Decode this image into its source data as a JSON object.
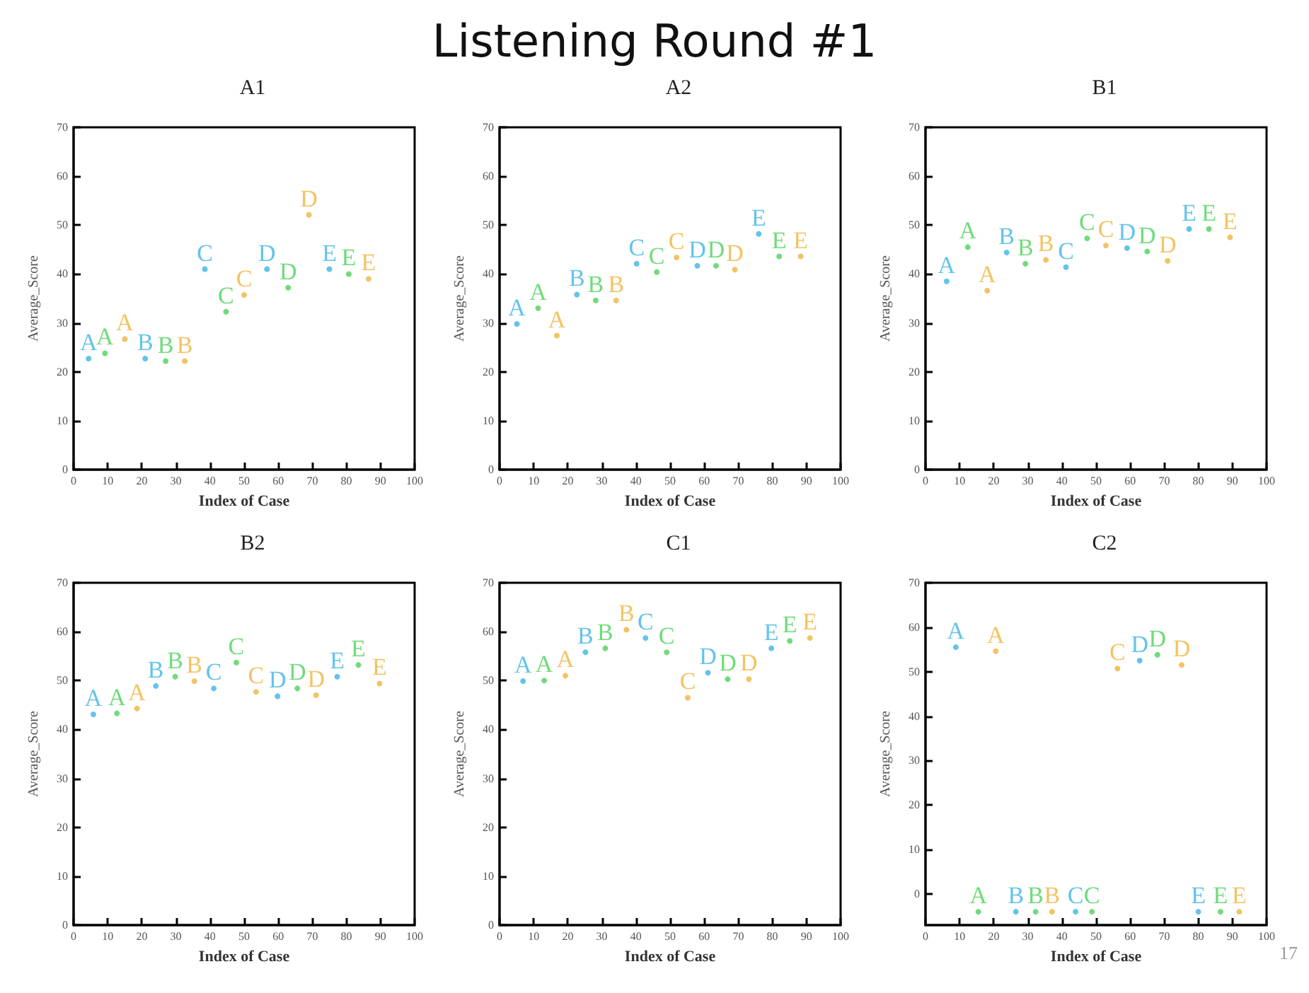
{
  "chart_data": [
    {
      "type": "other",
      "title": "Listening Round #1",
      "annotations": [
        "17"
      ]
    },
    {
      "type": "scatter",
      "title": "A1",
      "xlabel": "Index of Case",
      "ylabel": "Average_Score",
      "xlim": [
        0,
        100
      ],
      "xticks": [
        0,
        10,
        20,
        30,
        40,
        50,
        60,
        70,
        80,
        90,
        100
      ],
      "ylim": [
        0,
        70
      ],
      "yticks": [
        0,
        10,
        20,
        30,
        40,
        50,
        60,
        70
      ],
      "grid": false,
      "marker": "circle",
      "series": [
        {
          "color": "#3cb4e6",
          "x": [
            4.4,
            21,
            38.5,
            56.7,
            75
          ],
          "values": [
            22.7,
            22.7,
            41,
            41,
            41
          ],
          "value_labels": [
            "A",
            "B",
            "C",
            "D",
            "E"
          ]
        },
        {
          "color": "#4cd25a",
          "x": [
            9.2,
            27,
            44.7,
            62.9,
            80.7
          ],
          "values": [
            23.8,
            22.2,
            32.3,
            37.2,
            40
          ],
          "value_labels": [
            "A",
            "B",
            "C",
            "D",
            "E"
          ]
        },
        {
          "color": "#f0b43c",
          "x": [
            15,
            32.6,
            50,
            69,
            86.5
          ],
          "values": [
            26.7,
            22.2,
            35.7,
            52.1,
            39
          ],
          "value_labels": [
            "A",
            "B",
            "C",
            "D",
            "E"
          ]
        }
      ]
    },
    {
      "type": "scatter",
      "title": "A2",
      "xlabel": "Index of Case",
      "ylabel": "Average_Score",
      "xlim": [
        0,
        100
      ],
      "xticks": [
        0,
        10,
        20,
        30,
        40,
        50,
        60,
        70,
        80,
        90,
        100
      ],
      "ylim": [
        0,
        70
      ],
      "yticks": [
        0,
        10,
        20,
        30,
        40,
        50,
        60,
        70
      ],
      "grid": false,
      "marker": "circle",
      "series": [
        {
          "color": "#3cb4e6",
          "x": [
            5.1,
            22.7,
            40.2,
            58,
            76
          ],
          "values": [
            29.8,
            35.8,
            42.1,
            41.7,
            48.2
          ],
          "value_labels": [
            "A",
            "B",
            "C",
            "D",
            "E"
          ]
        },
        {
          "color": "#4cd25a",
          "x": [
            11.3,
            28.2,
            46.1,
            63.5,
            82
          ],
          "values": [
            33,
            34.6,
            40.4,
            41.7,
            43.6
          ],
          "value_labels": [
            "A",
            "B",
            "C",
            "D",
            "E"
          ]
        },
        {
          "color": "#f0b43c",
          "x": [
            16.8,
            34.2,
            51.9,
            69,
            88.3
          ],
          "values": [
            27.4,
            34.6,
            43.4,
            40.9,
            43.6
          ],
          "value_labels": [
            "A",
            "B",
            "C",
            "D",
            "E"
          ]
        }
      ]
    },
    {
      "type": "scatter",
      "title": "B1",
      "xlabel": "Index of Case",
      "ylabel": "Average_Score",
      "xlim": [
        0,
        100
      ],
      "xticks": [
        0,
        10,
        20,
        30,
        40,
        50,
        60,
        70,
        80,
        90,
        100
      ],
      "ylim": [
        0,
        70
      ],
      "yticks": [
        0,
        10,
        20,
        30,
        40,
        50,
        60,
        70
      ],
      "grid": false,
      "marker": "circle",
      "series": [
        {
          "color": "#3cb4e6",
          "x": [
            6.2,
            23.8,
            41.2,
            59.1,
            77.3
          ],
          "values": [
            38.5,
            44.4,
            41.4,
            45.3,
            49.2
          ],
          "value_labels": [
            "A",
            "B",
            "C",
            "D",
            "E"
          ]
        },
        {
          "color": "#4cd25a",
          "x": [
            12.4,
            29.3,
            47.4,
            65,
            83.1
          ],
          "values": [
            45.5,
            42.1,
            47.3,
            44.6,
            49.2
          ],
          "value_labels": [
            "A",
            "B",
            "C",
            "D",
            "E"
          ]
        },
        {
          "color": "#f0b43c",
          "x": [
            18.1,
            35.3,
            52.9,
            71,
            89.3
          ],
          "values": [
            36.6,
            42.9,
            45.8,
            42.7,
            47.5
          ],
          "value_labels": [
            "A",
            "B",
            "C",
            "D",
            "E"
          ]
        }
      ]
    },
    {
      "type": "scatter",
      "title": "B2",
      "xlabel": "Index of Case",
      "ylabel": "Average_Score",
      "xlim": [
        0,
        100
      ],
      "xticks": [
        0,
        10,
        20,
        30,
        40,
        50,
        60,
        70,
        80,
        90,
        100
      ],
      "ylim": [
        0,
        70
      ],
      "yticks": [
        0,
        10,
        20,
        30,
        40,
        50,
        60,
        70
      ],
      "grid": false,
      "marker": "circle",
      "series": [
        {
          "color": "#3cb4e6",
          "x": [
            5.8,
            24.1,
            41.1,
            59.8,
            77.3
          ],
          "values": [
            43.1,
            48.9,
            48.4,
            46.8,
            50.8
          ],
          "value_labels": [
            "A",
            "B",
            "C",
            "D",
            "E"
          ]
        },
        {
          "color": "#4cd25a",
          "x": [
            12.7,
            29.8,
            47.7,
            65.6,
            83.5
          ],
          "values": [
            43.3,
            50.8,
            53.7,
            48.4,
            53.2
          ],
          "value_labels": [
            "A",
            "B",
            "C",
            "D",
            "E"
          ]
        },
        {
          "color": "#f0b43c",
          "x": [
            18.6,
            35.4,
            53.5,
            71.1,
            89.7
          ],
          "values": [
            44.3,
            49.9,
            47.7,
            47,
            49.4
          ],
          "value_labels": [
            "A",
            "B",
            "C",
            "D",
            "E"
          ]
        }
      ]
    },
    {
      "type": "scatter",
      "title": "C1",
      "xlabel": "Index of Case",
      "ylabel": "Average_Score",
      "xlim": [
        0,
        100
      ],
      "xticks": [
        0,
        10,
        20,
        30,
        40,
        50,
        60,
        70,
        80,
        90,
        100
      ],
      "ylim": [
        0,
        70
      ],
      "yticks": [
        0,
        10,
        20,
        30,
        40,
        50,
        60,
        70
      ],
      "grid": false,
      "marker": "circle",
      "series": [
        {
          "color": "#3cb4e6",
          "x": [
            6.9,
            25.2,
            42.8,
            61.1,
            79.7
          ],
          "values": [
            49.9,
            55.8,
            58.7,
            51.6,
            56.6
          ],
          "value_labels": [
            "A",
            "B",
            "C",
            "D",
            "E"
          ]
        },
        {
          "color": "#4cd25a",
          "x": [
            13.1,
            31,
            49,
            66.9,
            85.1
          ],
          "values": [
            50,
            56.6,
            55.8,
            50.3,
            58.1
          ],
          "value_labels": [
            "A",
            "B",
            "C",
            "D",
            "E"
          ]
        },
        {
          "color": "#f0b43c",
          "x": [
            19.3,
            37.2,
            55.2,
            73.1,
            91
          ],
          "values": [
            51,
            60.4,
            46.5,
            50.3,
            58.7
          ],
          "value_labels": [
            "A",
            "B",
            "C",
            "D",
            "E"
          ]
        }
      ]
    },
    {
      "type": "scatter",
      "title": "C2",
      "xlabel": "Index of Case",
      "ylabel": "Average_Score",
      "xlim": [
        0,
        100
      ],
      "xticks": [
        0,
        10,
        20,
        30,
        40,
        50,
        60,
        70,
        80,
        90,
        100
      ],
      "ylim": [
        -7,
        70
      ],
      "yticks": [
        0,
        10,
        20,
        30,
        40,
        50,
        60,
        70
      ],
      "grid": false,
      "marker": "circle",
      "series": [
        {
          "color": "#3cb4e6",
          "x": [
            8.9,
            26.5,
            44,
            62.8,
            80
          ],
          "values": [
            55.5,
            -4,
            -4,
            52.5,
            -4
          ],
          "value_labels": [
            "A",
            "B",
            "C",
            "D",
            "E"
          ]
        },
        {
          "color": "#4cd25a",
          "x": [
            15.5,
            32.3,
            48.8,
            68,
            86.5
          ],
          "values": [
            -4,
            -4,
            -4,
            53.8,
            -4
          ],
          "value_labels": [
            "A",
            "B",
            "C",
            "D",
            "E"
          ]
        },
        {
          "color": "#f0b43c",
          "x": [
            20.6,
            37.1,
            56.3,
            75.1,
            92
          ],
          "values": [
            54.6,
            -4,
            50.7,
            51.5,
            -4
          ],
          "value_labels": [
            "A",
            "B",
            "C",
            "D",
            "E"
          ]
        }
      ]
    }
  ]
}
